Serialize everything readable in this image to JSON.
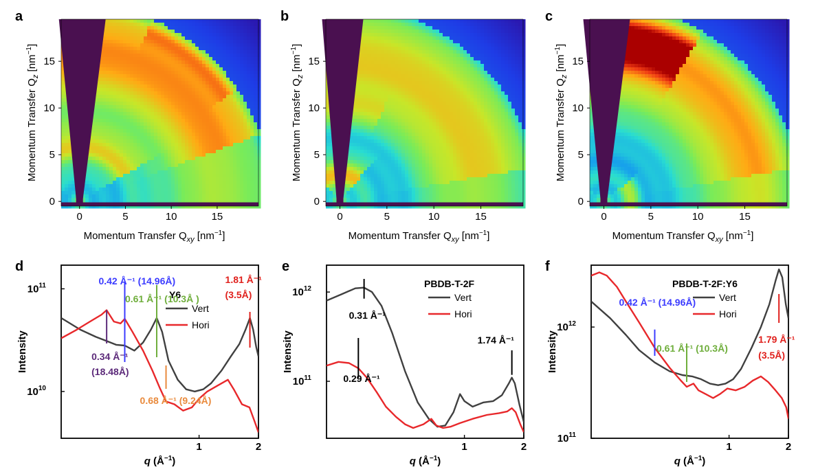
{
  "colors": {
    "vert": "#404040",
    "hori": "#e8282b",
    "blue": "#3b3bff",
    "purple": "#5c2a7a",
    "green": "#6fae3c",
    "orange": "#e98a3c",
    "red": "#e0201c",
    "mask": "#4a1050"
  },
  "chart_data": [
    {
      "panel": "a",
      "type": "heatmap",
      "xlabel": "Momentum Transfer Q",
      "xlabel_sub": "xy",
      "xlabel_unit": "[nm",
      "xlabel_sup": "−1",
      "ylabel": "Momentum Transfer Q",
      "ylabel_sub": "z",
      "ylabel_unit": "[nm",
      "ylabel_sup": "−1",
      "xlim": [
        -2,
        19.5
      ],
      "ylim": [
        -0.5,
        19.5
      ],
      "xticks": [
        0,
        5,
        10,
        15
      ],
      "yticks": [
        0,
        5,
        10,
        15
      ],
      "features": [
        {
          "q": 5.8,
          "width": 2.6,
          "chi": [
            40,
            90
          ],
          "strength": 0.85
        },
        {
          "q": 17.5,
          "width": 6.0,
          "chi": [
            30,
            90
          ],
          "strength": 0.7
        },
        {
          "q": 19.8,
          "width": 1.4,
          "chi": [
            45,
            58
          ],
          "strength": 0.35
        }
      ]
    },
    {
      "panel": "b",
      "type": "heatmap",
      "xlabel": "Momentum Transfer Q",
      "xlabel_sub": "xy",
      "xlabel_unit": "[nm",
      "xlabel_sup": "−1",
      "ylabel": "Momentum Transfer Q",
      "ylabel_sub": "z",
      "ylabel_unit": "[nm",
      "ylabel_sup": "−1",
      "xlim": [
        -1.5,
        19.5
      ],
      "ylim": [
        -0.5,
        19.5
      ],
      "xticks": [
        0,
        5,
        10,
        15
      ],
      "yticks": [
        0,
        5,
        10,
        15
      ],
      "features": [
        {
          "q": 3.1,
          "width": 1.8,
          "chi": [
            60,
            95
          ],
          "strength": 1.0
        },
        {
          "q": 17.0,
          "width": 7.0,
          "chi": [
            20,
            90
          ],
          "strength": 0.45
        },
        {
          "q": 10.0,
          "width": 1.5,
          "chi": [
            75,
            92
          ],
          "strength": 0.35
        }
      ]
    },
    {
      "panel": "c",
      "type": "heatmap",
      "xlabel": "Momentum Transfer Q",
      "xlabel_sub": "xy",
      "xlabel_unit": "[nm",
      "xlabel_sup": "−1",
      "ylabel": "Momentum Transfer Q",
      "ylabel_sub": "z",
      "ylabel_unit": "[nm",
      "ylabel_sup": "−1",
      "xlim": [
        -1.5,
        19.5
      ],
      "ylim": [
        -0.5,
        19.5
      ],
      "xticks": [
        0,
        5,
        10,
        15
      ],
      "yticks": [
        0,
        5,
        10,
        15
      ],
      "features": [
        {
          "q": 17.5,
          "width": 3.0,
          "chi": [
            70,
            90
          ],
          "strength": 0.95
        },
        {
          "q": 17.0,
          "width": 7.0,
          "chi": [
            20,
            90
          ],
          "strength": 0.4
        },
        {
          "q": 3.0,
          "width": 1.2,
          "chi": [
            0,
            30
          ],
          "strength": 0.7
        }
      ]
    },
    {
      "panel": "d",
      "type": "line",
      "xscale": "log",
      "yscale": "log",
      "xlim": [
        0.2,
        2.0
      ],
      "ylim": [
        3500000000,
        170000000000
      ],
      "xticks": [
        1,
        2
      ],
      "xlabel": "q",
      "xlabel_unit": "(Å",
      "xlabel_sup": "−1",
      "xlabel_close": ")",
      "ylabel": "Intensity",
      "yticks": [
        {
          "base": "10",
          "exp": "10",
          "value": 10000000000
        },
        {
          "base": "10",
          "exp": "11",
          "value": 100000000000
        }
      ],
      "legend_title": "Y6",
      "legend": [
        "Vert",
        "Hori"
      ],
      "series": [
        {
          "name": "Vert",
          "x": [
            0.2,
            0.25,
            0.3,
            0.34,
            0.38,
            0.42,
            0.47,
            0.52,
            0.57,
            0.61,
            0.65,
            0.7,
            0.78,
            0.86,
            0.95,
            1.05,
            1.15,
            1.3,
            1.45,
            1.6,
            1.72,
            1.81,
            1.88,
            1.95,
            2.0
          ],
          "y": [
            52000000000,
            40000000000,
            34000000000,
            31000000000,
            28500000000,
            28000000000,
            25000000000,
            30000000000,
            40000000000,
            52000000000,
            38000000000,
            20000000000,
            13000000000,
            10500000000,
            10000000000,
            10500000000,
            12000000000,
            16000000000,
            22000000000,
            29000000000,
            40000000000,
            52000000000,
            40000000000,
            27000000000,
            22000000000
          ]
        },
        {
          "name": "Hori",
          "x": [
            0.2,
            0.24,
            0.28,
            0.32,
            0.34,
            0.37,
            0.4,
            0.42,
            0.46,
            0.52,
            0.58,
            0.63,
            0.68,
            0.75,
            0.83,
            0.92,
            1.0,
            1.1,
            1.25,
            1.4,
            1.5,
            1.65,
            1.8,
            1.92,
            2.0
          ],
          "y": [
            33000000000,
            40000000000,
            48000000000,
            56000000000,
            62000000000,
            48000000000,
            46000000000,
            51000000000,
            38000000000,
            25000000000,
            16000000000,
            11000000000,
            8000000000,
            7500000000,
            6500000000,
            7000000000,
            8500000000,
            10000000000,
            11500000000,
            13000000000,
            10500000000,
            7500000000,
            7000000000,
            5000000000,
            4000000000
          ]
        }
      ],
      "annotations": [
        {
          "x": 0.34,
          "text": [
            "0.34 Å⁻¹",
            "(18.48Å)"
          ],
          "color": "purple"
        },
        {
          "x": 0.42,
          "text": [
            "0.42 Å⁻¹ (14.96Å)"
          ],
          "color": "blue"
        },
        {
          "x": 0.61,
          "text": [
            "0.61 Å⁻¹ (10.3Å )"
          ],
          "color": "green"
        },
        {
          "x": 0.68,
          "text": [
            "0.68 Å⁻¹ (9.24Å)"
          ],
          "color": "orange"
        },
        {
          "x": 1.81,
          "text": [
            "1.81 Å⁻¹",
            "(3.5Å)"
          ],
          "color": "red"
        }
      ]
    },
    {
      "panel": "e",
      "type": "line",
      "xscale": "log",
      "yscale": "log",
      "xlim": [
        0.2,
        2.0
      ],
      "ylim": [
        23000000000,
        2000000000000
      ],
      "xticks": [
        1,
        2
      ],
      "xlabel": "q",
      "xlabel_unit": "(Å",
      "xlabel_sup": "−1",
      "xlabel_close": ")",
      "ylabel": "Intensity",
      "yticks": [
        {
          "base": "10",
          "exp": "11",
          "value": 100000000000
        },
        {
          "base": "10",
          "exp": "12",
          "value": 1000000000000
        }
      ],
      "legend_title": "PBDB-T-2F",
      "legend": [
        "Vert",
        "Hori"
      ],
      "series": [
        {
          "name": "Vert",
          "x": [
            0.2,
            0.24,
            0.28,
            0.31,
            0.34,
            0.38,
            0.43,
            0.5,
            0.58,
            0.66,
            0.73,
            0.8,
            0.88,
            0.95,
            1.0,
            1.1,
            1.25,
            1.4,
            1.55,
            1.68,
            1.74,
            1.8,
            1.9,
            2.0
          ],
          "y": [
            800000000000,
            950000000000,
            1100000000000,
            1120000000000,
            1000000000000,
            700000000000,
            350000000000,
            130000000000,
            58000000000,
            38000000000,
            31000000000,
            32000000000,
            45000000000,
            72000000000,
            60000000000,
            52000000000,
            58000000000,
            60000000000,
            70000000000,
            95000000000,
            110000000000,
            95000000000,
            55000000000,
            35000000000
          ]
        },
        {
          "name": "Hori",
          "x": [
            0.2,
            0.23,
            0.26,
            0.29,
            0.32,
            0.36,
            0.4,
            0.45,
            0.5,
            0.55,
            0.62,
            0.68,
            0.72,
            0.78,
            0.85,
            0.95,
            1.1,
            1.3,
            1.5,
            1.65,
            1.74,
            1.82,
            1.92,
            2.0
          ],
          "y": [
            150000000000,
            165000000000,
            160000000000,
            140000000000,
            110000000000,
            75000000000,
            52000000000,
            40000000000,
            33000000000,
            30000000000,
            33000000000,
            38000000000,
            32000000000,
            30000000000,
            31000000000,
            34000000000,
            38000000000,
            42000000000,
            44000000000,
            46000000000,
            50000000000,
            45000000000,
            33000000000,
            27000000000
          ]
        }
      ],
      "annotations": [
        {
          "x": 0.31,
          "text": [
            "0.31 Å⁻¹"
          ],
          "color": "black",
          "target": "Vert"
        },
        {
          "x": 0.29,
          "text": [
            "0.29 Å⁻¹"
          ],
          "color": "black",
          "target": "Hori"
        },
        {
          "x": 1.74,
          "text": [
            "1.74 Å⁻¹"
          ],
          "color": "black",
          "target": "Vert"
        }
      ]
    },
    {
      "panel": "f",
      "type": "line",
      "xscale": "log",
      "yscale": "log",
      "xlim": [
        0.2,
        2.0
      ],
      "ylim": [
        100000000000,
        3600000000000
      ],
      "xticks": [
        1,
        2
      ],
      "xlabel": "q",
      "xlabel_unit": "(Å",
      "xlabel_sup": "−1",
      "xlabel_close": ")",
      "ylabel": "Intensity",
      "yticks": [
        {
          "base": "10",
          "exp": "11",
          "value": 100000000000
        },
        {
          "base": "10",
          "exp": "12",
          "value": 1000000000000
        }
      ],
      "legend_title": "PBDB-T-2F:Y6",
      "legend": [
        "Vert",
        "Hori"
      ],
      "series": [
        {
          "name": "Vert",
          "x": [
            0.2,
            0.25,
            0.3,
            0.35,
            0.42,
            0.5,
            0.58,
            0.65,
            0.72,
            0.8,
            0.88,
            0.96,
            1.05,
            1.15,
            1.3,
            1.45,
            1.6,
            1.72,
            1.79,
            1.86,
            1.94,
            2.0
          ],
          "y": [
            1700000000000,
            1200000000000,
            850000000000,
            620000000000,
            480000000000,
            400000000000,
            370000000000,
            360000000000,
            340000000000,
            310000000000,
            300000000000,
            310000000000,
            340000000000,
            420000000000,
            650000000000,
            1000000000000,
            1600000000000,
            2600000000000,
            3300000000000,
            2800000000000,
            1600000000000,
            1200000000000
          ]
        },
        {
          "name": "Hori",
          "x": [
            0.2,
            0.22,
            0.24,
            0.27,
            0.3,
            0.35,
            0.42,
            0.5,
            0.57,
            0.61,
            0.66,
            0.7,
            0.76,
            0.83,
            0.9,
            0.98,
            1.08,
            1.2,
            1.32,
            1.45,
            1.58,
            1.72,
            1.85,
            1.95,
            2.0
          ],
          "y": [
            2900000000000,
            3100000000000,
            2900000000000,
            2300000000000,
            1700000000000,
            1100000000000,
            650000000000,
            430000000000,
            330000000000,
            290000000000,
            310000000000,
            270000000000,
            250000000000,
            230000000000,
            250000000000,
            280000000000,
            270000000000,
            290000000000,
            330000000000,
            360000000000,
            320000000000,
            270000000000,
            230000000000,
            190000000000,
            150000000000
          ]
        }
      ],
      "annotations": [
        {
          "x": 0.42,
          "text": [
            "0.42 Å⁻¹ (14.96Å)"
          ],
          "color": "blue"
        },
        {
          "x": 0.61,
          "text": [
            "0.61 Å⁻¹ (10.3Å)"
          ],
          "color": "green"
        },
        {
          "x": 1.79,
          "text": [
            "1.79 Å⁻¹",
            "(3.5Å)"
          ],
          "color": "red"
        }
      ]
    }
  ]
}
